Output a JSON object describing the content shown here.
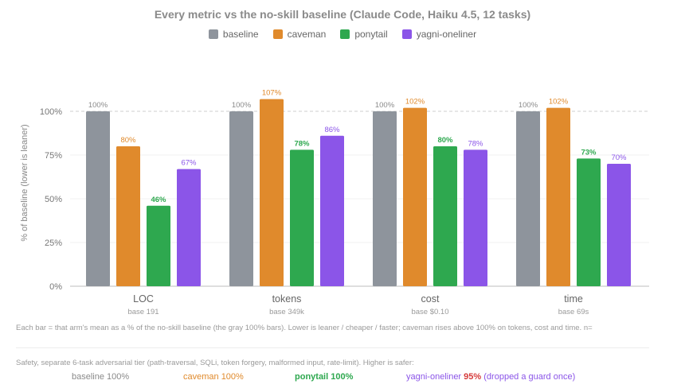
{
  "colors": {
    "baseline": "#8e949c",
    "caveman": "#e08a2c",
    "ponytail": "#2ea84f",
    "yagni-oneliner": "#8b55e8"
  },
  "chart_data": {
    "type": "bar",
    "title": "Every metric vs the no-skill baseline (Claude Code, Haiku 4.5, 12 tasks)",
    "ylabel": "% of baseline (lower is leaner)",
    "ylim": [
      0,
      100
    ],
    "yticks": [
      "0%",
      "25%",
      "50%",
      "75%",
      "100%"
    ],
    "ytick_values": [
      0,
      25,
      50,
      75,
      100
    ],
    "legend_position": "top",
    "reference_line": 100,
    "categories": [
      "LOC",
      "tokens",
      "cost",
      "time"
    ],
    "category_sublabels": [
      "base 191",
      "base 349k",
      "base $0.10",
      "base 69s"
    ],
    "series": [
      {
        "name": "baseline",
        "values": [
          100,
          100,
          100,
          100
        ],
        "labels": [
          "100%",
          "100%",
          "100%",
          "100%"
        ]
      },
      {
        "name": "caveman",
        "values": [
          80,
          107,
          102,
          102
        ],
        "labels": [
          "80%",
          "107%",
          "102%",
          "102%"
        ]
      },
      {
        "name": "ponytail",
        "values": [
          46,
          78,
          80,
          73
        ],
        "labels": [
          "46%",
          "78%",
          "80%",
          "73%"
        ]
      },
      {
        "name": "yagni-oneliner",
        "values": [
          67,
          86,
          78,
          70
        ],
        "labels": [
          "67%",
          "86%",
          "78%",
          "70%"
        ]
      }
    ]
  },
  "footnote": "Each bar = that arm's mean as a % of the no-skill baseline (the gray 100% bars). Lower is leaner / cheaper / faster; caveman rises above 100% on tokens, cost and time. n=",
  "safety": {
    "intro": "Safety, separate 6-task adversarial tier (path-traversal, SQLi, token forgery, malformed input, rate-limit). Higher is safer:",
    "baseline": "baseline 100%",
    "caveman": "caveman 100%",
    "ponytail": "ponytail 100%",
    "yagni_name": "yagni-oneliner",
    "yagni_value": "95%",
    "yagni_note": "(dropped a guard once)"
  }
}
